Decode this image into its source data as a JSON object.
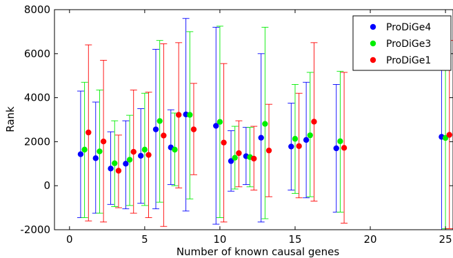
{
  "chart_data": {
    "type": "scatter",
    "title": "",
    "xlabel": "Number of known causal genes",
    "ylabel": "Rank",
    "xlim": [
      -1,
      25.5
    ],
    "ylim": [
      -2000,
      8000
    ],
    "xticks": [
      "0",
      "5",
      "10",
      "15",
      "20",
      "25"
    ],
    "xtick_values": [
      0,
      5,
      10,
      15,
      20,
      25
    ],
    "yticks": [
      "-2000",
      "0",
      "2000",
      "4000",
      "6000",
      "8000"
    ],
    "ytick_values": [
      -2000,
      0,
      2000,
      4000,
      6000,
      8000
    ],
    "grid": false,
    "error_bars": true,
    "legend_position": "top-right",
    "series": [
      {
        "name": "ProDiGe4",
        "color": "#0000ff",
        "points": [
          {
            "x": 1,
            "y": 1430,
            "lo": -1450,
            "hi": 4300
          },
          {
            "x": 2,
            "y": 1250,
            "lo": -1250,
            "hi": 3800
          },
          {
            "x": 3,
            "y": 780,
            "lo": -850,
            "hi": 2450
          },
          {
            "x": 4,
            "y": 1000,
            "lo": -1050,
            "hi": 2950
          },
          {
            "x": 5,
            "y": 1360,
            "lo": -800,
            "hi": 3500
          },
          {
            "x": 6,
            "y": 2560,
            "lo": -1050,
            "hi": 6200
          },
          {
            "x": 7,
            "y": 1740,
            "lo": 50,
            "hi": 3450
          },
          {
            "x": 8,
            "y": 3240,
            "lo": -1150,
            "hi": 7600
          },
          {
            "x": 10,
            "y": 2720,
            "lo": -1750,
            "hi": 7200
          },
          {
            "x": 11,
            "y": 1120,
            "lo": -250,
            "hi": 2500
          },
          {
            "x": 12,
            "y": 1340,
            "lo": 50,
            "hi": 2650
          },
          {
            "x": 13,
            "y": 2180,
            "lo": -1650,
            "hi": 6000
          },
          {
            "x": 15,
            "y": 1780,
            "lo": -200,
            "hi": 3750
          },
          {
            "x": 16,
            "y": 2080,
            "lo": -550,
            "hi": 4700
          },
          {
            "x": 18,
            "y": 1700,
            "lo": -1200,
            "hi": 4600
          },
          {
            "x": 25,
            "y": 2220,
            "lo": -2000,
            "hi": 6400
          }
        ]
      },
      {
        "name": "ProDiGe3",
        "color": "#00ee00",
        "points": [
          {
            "x": 1,
            "y": 1640,
            "lo": -1450,
            "hi": 4700
          },
          {
            "x": 2,
            "y": 1560,
            "lo": -1250,
            "hi": 4350
          },
          {
            "x": 3,
            "y": 1020,
            "lo": -950,
            "hi": 2950
          },
          {
            "x": 4,
            "y": 1180,
            "lo": -900,
            "hi": 3200
          },
          {
            "x": 5,
            "y": 1640,
            "lo": -900,
            "hi": 4200
          },
          {
            "x": 6,
            "y": 2940,
            "lo": -750,
            "hi": 6600
          },
          {
            "x": 7,
            "y": 1640,
            "lo": 0,
            "hi": 3300
          },
          {
            "x": 8,
            "y": 3220,
            "lo": -600,
            "hi": 7000
          },
          {
            "x": 10,
            "y": 2900,
            "lo": -1450,
            "hi": 7250
          },
          {
            "x": 11,
            "y": 1270,
            "lo": -150,
            "hi": 2700
          },
          {
            "x": 12,
            "y": 1300,
            "lo": -50,
            "hi": 2650
          },
          {
            "x": 13,
            "y": 2810,
            "lo": -1500,
            "hi": 7200
          },
          {
            "x": 15,
            "y": 2130,
            "lo": -350,
            "hi": 4600
          },
          {
            "x": 16,
            "y": 2290,
            "lo": -500,
            "hi": 5150
          },
          {
            "x": 18,
            "y": 2020,
            "lo": -1200,
            "hi": 5200
          },
          {
            "x": 25,
            "y": 2170,
            "lo": -1950,
            "hi": 6350
          }
        ]
      },
      {
        "name": "ProDiGe1",
        "color": "#ff0000",
        "points": [
          {
            "x": 1,
            "y": 2420,
            "lo": -1600,
            "hi": 6400
          },
          {
            "x": 2,
            "y": 2010,
            "lo": -1650,
            "hi": 5700
          },
          {
            "x": 3,
            "y": 680,
            "lo": -1000,
            "hi": 2300
          },
          {
            "x": 4,
            "y": 1540,
            "lo": -1250,
            "hi": 4350
          },
          {
            "x": 5,
            "y": 1400,
            "lo": -1450,
            "hi": 4250
          },
          {
            "x": 6,
            "y": 2280,
            "lo": -1850,
            "hi": 6450
          },
          {
            "x": 7,
            "y": 3220,
            "lo": -100,
            "hi": 6500
          },
          {
            "x": 8,
            "y": 2560,
            "lo": 500,
            "hi": 4650
          },
          {
            "x": 10,
            "y": 1960,
            "lo": -1650,
            "hi": 5550
          },
          {
            "x": 11,
            "y": 1480,
            "lo": -50,
            "hi": 2950
          },
          {
            "x": 12,
            "y": 1230,
            "lo": -200,
            "hi": 2700
          },
          {
            "x": 13,
            "y": 1600,
            "lo": -500,
            "hi": 3700
          },
          {
            "x": 15,
            "y": 1800,
            "lo": -550,
            "hi": 4200
          },
          {
            "x": 16,
            "y": 2910,
            "lo": -700,
            "hi": 6500
          },
          {
            "x": 18,
            "y": 1720,
            "lo": -1700,
            "hi": 5150
          },
          {
            "x": 25,
            "y": 2310,
            "lo": -1950,
            "hi": 6600
          }
        ]
      }
    ]
  }
}
